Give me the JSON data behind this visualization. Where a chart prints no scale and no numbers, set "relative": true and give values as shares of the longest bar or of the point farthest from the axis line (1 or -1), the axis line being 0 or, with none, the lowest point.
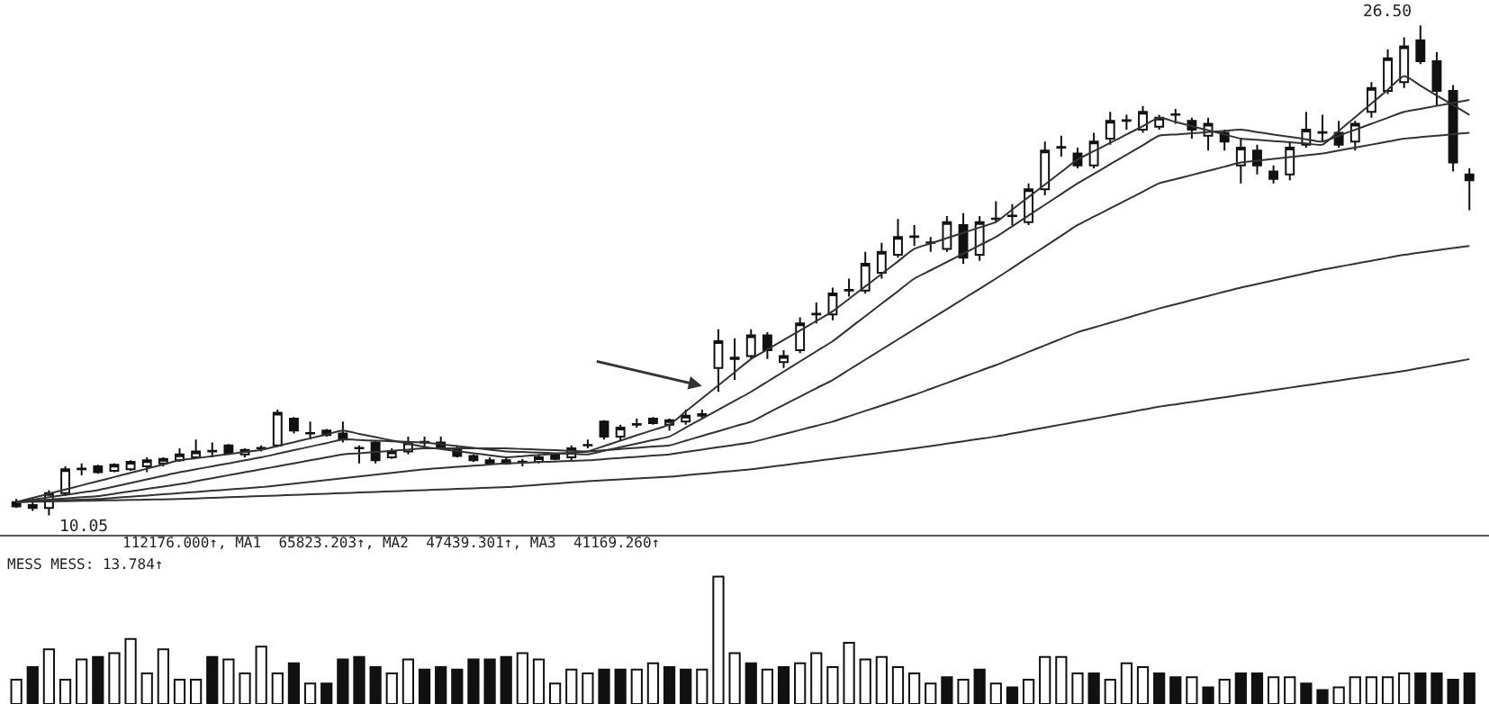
{
  "chart_data": [
    {
      "type": "candlestick",
      "marker": "none",
      "line_style": "solid",
      "categories": [
        null,
        null,
        null,
        null,
        null,
        null,
        null,
        null,
        null,
        null,
        null,
        null,
        null,
        null,
        null,
        null,
        null,
        null,
        null,
        null,
        null,
        null,
        null,
        null,
        null,
        null,
        null,
        null,
        null,
        null,
        null,
        null,
        null,
        null,
        null,
        null,
        null,
        null,
        null,
        null,
        null,
        null,
        null,
        null,
        null,
        null,
        null,
        null,
        null,
        null,
        null,
        null,
        null,
        null,
        null,
        null,
        null,
        null,
        null,
        null,
        null,
        null,
        null,
        null,
        null,
        null,
        null,
        null,
        null,
        null,
        null,
        null,
        null,
        null,
        null,
        null,
        null,
        null,
        null,
        null,
        null,
        null,
        null,
        null,
        null,
        null,
        null,
        null,
        null,
        null
      ],
      "ohlc": [
        [
          10.5,
          10.6,
          10.3,
          10.35
        ],
        [
          10.4,
          10.5,
          10.2,
          10.3
        ],
        [
          10.3,
          10.9,
          10.05,
          10.8
        ],
        [
          10.8,
          11.7,
          10.7,
          11.6
        ],
        [
          11.6,
          11.8,
          11.4,
          11.62
        ],
        [
          11.7,
          11.75,
          11.45,
          11.5
        ],
        [
          11.55,
          11.8,
          11.5,
          11.75
        ],
        [
          11.6,
          11.9,
          11.55,
          11.85
        ],
        [
          11.7,
          12.0,
          11.5,
          11.9
        ],
        [
          11.8,
          12.0,
          11.7,
          11.95
        ],
        [
          11.9,
          12.3,
          11.85,
          12.1
        ],
        [
          12.0,
          12.6,
          11.95,
          12.2
        ],
        [
          12.2,
          12.5,
          12.0,
          12.22
        ],
        [
          12.4,
          12.45,
          12.1,
          12.15
        ],
        [
          12.1,
          12.3,
          12.0,
          12.25
        ],
        [
          12.3,
          12.4,
          12.2,
          12.32
        ],
        [
          12.4,
          13.6,
          12.35,
          13.5
        ],
        [
          13.3,
          13.35,
          12.8,
          12.9
        ],
        [
          12.8,
          13.2,
          12.6,
          12.82
        ],
        [
          12.9,
          12.95,
          12.7,
          12.75
        ],
        [
          12.8,
          13.2,
          12.5,
          12.6
        ],
        [
          12.3,
          12.4,
          11.8,
          12.32
        ],
        [
          12.5,
          12.55,
          11.8,
          11.9
        ],
        [
          12.0,
          12.3,
          11.95,
          12.2
        ],
        [
          12.2,
          12.7,
          12.1,
          12.5
        ],
        [
          12.5,
          12.7,
          12.3,
          12.52
        ],
        [
          12.5,
          12.7,
          12.3,
          12.35
        ],
        [
          12.3,
          12.4,
          12.0,
          12.05
        ],
        [
          12.05,
          12.1,
          11.85,
          11.9
        ],
        [
          11.9,
          12.0,
          11.75,
          11.8
        ],
        [
          11.8,
          12.0,
          11.75,
          11.9
        ],
        [
          11.85,
          11.95,
          11.7,
          11.86
        ],
        [
          11.85,
          12.1,
          11.8,
          12.0
        ],
        [
          12.1,
          12.15,
          11.9,
          11.95
        ],
        [
          12.0,
          12.4,
          11.9,
          12.3
        ],
        [
          12.4,
          12.6,
          12.3,
          12.42
        ],
        [
          13.2,
          13.25,
          12.6,
          12.7
        ],
        [
          12.7,
          13.1,
          12.55,
          13.0
        ],
        [
          13.1,
          13.3,
          13.0,
          13.12
        ],
        [
          13.3,
          13.35,
          13.1,
          13.15
        ],
        [
          13.1,
          13.3,
          12.9,
          13.25
        ],
        [
          13.2,
          13.6,
          13.1,
          13.4
        ],
        [
          13.4,
          13.6,
          13.3,
          13.45
        ],
        [
          15.0,
          16.3,
          14.2,
          15.9
        ],
        [
          15.3,
          16.0,
          14.6,
          15.35
        ],
        [
          15.4,
          16.3,
          15.3,
          16.1
        ],
        [
          16.1,
          16.2,
          15.3,
          15.6
        ],
        [
          15.2,
          15.6,
          15.0,
          15.4
        ],
        [
          15.6,
          16.7,
          15.5,
          16.5
        ],
        [
          16.8,
          17.2,
          16.5,
          16.82
        ],
        [
          16.8,
          17.7,
          16.6,
          17.5
        ],
        [
          17.6,
          18.0,
          17.4,
          17.62
        ],
        [
          17.6,
          18.9,
          17.5,
          18.5
        ],
        [
          18.2,
          19.2,
          18.0,
          18.9
        ],
        [
          18.8,
          20.0,
          18.7,
          19.4
        ],
        [
          19.4,
          19.8,
          19.1,
          19.42
        ],
        [
          19.2,
          19.4,
          18.9,
          19.22
        ],
        [
          19.0,
          20.1,
          18.9,
          19.9
        ],
        [
          19.8,
          20.2,
          18.5,
          18.7
        ],
        [
          18.8,
          20.1,
          18.6,
          19.9
        ],
        [
          20.0,
          20.6,
          19.9,
          20.02
        ],
        [
          20.1,
          20.5,
          19.8,
          20.12
        ],
        [
          19.9,
          21.2,
          19.8,
          21.0
        ],
        [
          21.0,
          22.6,
          20.8,
          22.3
        ],
        [
          22.4,
          22.8,
          22.1,
          22.42
        ],
        [
          22.2,
          22.4,
          21.7,
          21.8
        ],
        [
          21.8,
          22.9,
          21.7,
          22.6
        ],
        [
          22.7,
          23.6,
          22.5,
          23.3
        ],
        [
          23.3,
          23.5,
          23.0,
          23.32
        ],
        [
          23.0,
          23.8,
          22.9,
          23.6
        ],
        [
          23.1,
          23.5,
          23.0,
          23.4
        ],
        [
          23.5,
          23.7,
          23.2,
          23.52
        ],
        [
          23.3,
          23.4,
          22.7,
          23.0
        ],
        [
          22.8,
          23.4,
          22.3,
          23.2
        ],
        [
          22.9,
          23.0,
          22.3,
          22.6
        ],
        [
          21.8,
          22.7,
          21.2,
          22.4
        ],
        [
          22.3,
          22.5,
          21.5,
          21.8
        ],
        [
          21.6,
          21.8,
          21.2,
          21.35
        ],
        [
          21.5,
          22.6,
          21.3,
          22.4
        ],
        [
          22.5,
          23.6,
          22.4,
          23.0
        ],
        [
          22.9,
          23.5,
          22.6,
          22.92
        ],
        [
          22.9,
          23.3,
          22.4,
          22.5
        ],
        [
          22.6,
          23.3,
          22.3,
          23.2
        ],
        [
          23.6,
          24.6,
          23.4,
          24.4
        ],
        [
          24.3,
          25.7,
          24.2,
          25.4
        ],
        [
          24.6,
          26.1,
          24.4,
          25.8
        ],
        [
          26.0,
          26.5,
          25.2,
          25.3
        ],
        [
          25.3,
          25.6,
          23.8,
          24.3
        ],
        [
          24.3,
          24.5,
          21.6,
          21.9
        ],
        [
          21.5,
          21.7,
          20.3,
          21.3
        ]
      ],
      "series": [
        {
          "type": "line",
          "color": "#333333",
          "values": [
            10.5,
            10.64,
            10.78,
            10.92,
            11.06,
            11.2,
            11.34,
            11.48,
            11.62,
            11.76,
            11.9,
            11.97,
            12.04,
            12.11,
            12.18,
            12.25,
            12.38,
            12.51,
            12.64,
            12.77,
            12.9,
            12.79,
            12.68,
            12.57,
            12.46,
            12.35,
            12.28,
            12.21,
            12.14,
            12.07,
            12.0,
            12.04,
            12.08,
            12.12,
            12.16,
            12.2,
            12.38,
            12.56,
            12.74,
            12.92,
            13.1,
            13.54,
            13.98,
            14.42,
            14.86,
            15.3,
            15.62,
            15.94,
            16.26,
            16.58,
            16.9,
            17.32,
            17.74,
            18.16,
            18.58,
            19.0,
            19.18,
            19.36,
            19.54,
            19.72,
            19.9,
            20.32,
            20.74,
            21.16,
            21.58,
            22.0,
            22.28,
            22.56,
            22.84,
            23.12,
            23.4,
            23.26,
            23.12,
            22.98,
            22.84,
            22.7,
            22.66,
            22.62,
            22.58,
            22.54,
            22.5,
            22.96,
            23.42,
            23.88,
            24.34,
            24.8,
            24.48,
            24.15,
            23.83,
            23.5
          ]
        },
        {
          "type": "line",
          "color": "#333333",
          "values": [
            10.5,
            10.58,
            10.66,
            10.74,
            10.82,
            10.9,
            11.02,
            11.14,
            11.26,
            11.38,
            11.5,
            11.6,
            11.7,
            11.8,
            11.9,
            12.0,
            12.12,
            12.24,
            12.36,
            12.48,
            12.6,
            12.58,
            12.56,
            12.54,
            12.52,
            12.5,
            12.44,
            12.38,
            12.32,
            12.26,
            12.2,
            12.18,
            12.16,
            12.14,
            12.12,
            12.1,
            12.22,
            12.34,
            12.46,
            12.58,
            12.7,
            13.0,
            13.3,
            13.6,
            13.9,
            14.2,
            14.54,
            14.88,
            15.22,
            15.56,
            15.9,
            16.32,
            16.74,
            17.16,
            17.58,
            18.0,
            18.28,
            18.56,
            18.84,
            19.12,
            19.4,
            19.76,
            20.12,
            20.48,
            20.84,
            21.2,
            21.52,
            21.84,
            22.16,
            22.48,
            22.8,
            22.84,
            22.88,
            22.92,
            22.96,
            23.0,
            22.92,
            22.84,
            22.76,
            22.68,
            22.6,
            22.8,
            23.0,
            23.2,
            23.4,
            23.6,
            23.7,
            23.8,
            23.9,
            24.0
          ]
        },
        {
          "type": "line",
          "color": "#333333",
          "values": [
            10.5,
            10.54,
            10.58,
            10.62,
            10.66,
            10.7,
            10.78,
            10.86,
            10.94,
            11.02,
            11.1,
            11.2,
            11.3,
            11.4,
            11.5,
            11.6,
            11.7,
            11.8,
            11.9,
            12.0,
            12.1,
            12.14,
            12.18,
            12.22,
            12.26,
            12.3,
            12.3,
            12.3,
            12.3,
            12.3,
            12.3,
            12.28,
            12.26,
            12.24,
            12.22,
            12.2,
            12.24,
            12.28,
            12.32,
            12.36,
            12.4,
            12.56,
            12.72,
            12.88,
            13.04,
            13.2,
            13.48,
            13.76,
            14.04,
            14.32,
            14.6,
            14.94,
            15.28,
            15.62,
            15.96,
            16.3,
            16.64,
            16.98,
            17.32,
            17.66,
            18.0,
            18.36,
            18.72,
            19.08,
            19.44,
            19.8,
            20.08,
            20.36,
            20.64,
            20.92,
            21.2,
            21.34,
            21.48,
            21.62,
            21.76,
            21.9,
            21.96,
            22.02,
            22.08,
            22.14,
            22.2,
            22.3,
            22.4,
            22.5,
            22.6,
            22.7,
            22.75,
            22.8,
            22.85,
            22.9
          ]
        },
        {
          "type": "line",
          "color": "#333333",
          "values": [
            10.5,
            10.52,
            10.54,
            10.56,
            10.58,
            10.6,
            10.64,
            10.68,
            10.72,
            10.76,
            10.8,
            10.84,
            10.88,
            10.92,
            10.96,
            11.0,
            11.06,
            11.12,
            11.18,
            11.24,
            11.3,
            11.36,
            11.42,
            11.48,
            11.54,
            11.6,
            11.64,
            11.68,
            11.72,
            11.76,
            11.8,
            11.82,
            11.84,
            11.86,
            11.88,
            11.9,
            11.94,
            11.98,
            12.02,
            12.06,
            12.1,
            12.18,
            12.26,
            12.34,
            12.42,
            12.5,
            12.64,
            12.78,
            12.92,
            13.06,
            13.2,
            13.38,
            13.56,
            13.74,
            13.92,
            14.1,
            14.3,
            14.5,
            14.7,
            14.9,
            15.1,
            15.32,
            15.54,
            15.76,
            15.98,
            16.2,
            16.36,
            16.52,
            16.68,
            16.84,
            17.0,
            17.14,
            17.28,
            17.42,
            17.56,
            17.7,
            17.82,
            17.94,
            18.06,
            18.18,
            18.3,
            18.4,
            18.5,
            18.6,
            18.7,
            18.8,
            18.88,
            18.95,
            19.03,
            19.1
          ]
        },
        {
          "type": "line",
          "color": "#333333",
          "values": [
            10.5,
            10.51,
            10.52,
            10.53,
            10.54,
            10.55,
            10.56,
            10.57,
            10.58,
            10.59,
            10.6,
            10.62,
            10.64,
            10.66,
            10.68,
            10.7,
            10.72,
            10.74,
            10.76,
            10.78,
            10.8,
            10.82,
            10.84,
            10.86,
            10.88,
            10.9,
            10.92,
            10.94,
            10.96,
            10.98,
            11.0,
            11.04,
            11.08,
            11.12,
            11.16,
            11.2,
            11.23,
            11.26,
            11.29,
            11.32,
            11.35,
            11.4,
            11.45,
            11.5,
            11.55,
            11.6,
            11.67,
            11.74,
            11.81,
            11.88,
            11.95,
            12.02,
            12.09,
            12.16,
            12.23,
            12.3,
            12.38,
            12.46,
            12.54,
            12.62,
            12.7,
            12.8,
            12.9,
            13.0,
            13.1,
            13.2,
            13.3,
            13.4,
            13.5,
            13.6,
            13.7,
            13.78,
            13.86,
            13.94,
            14.02,
            14.1,
            14.18,
            14.26,
            14.34,
            14.42,
            14.5,
            14.58,
            14.66,
            14.74,
            14.82,
            14.9,
            15.0,
            15.1,
            15.2,
            15.3
          ]
        }
      ],
      "annotations": [
        "26.50",
        "10.05"
      ]
    },
    {
      "type": "bar",
      "relative": true,
      "categories": [
        null,
        null,
        null,
        null,
        null,
        null,
        null,
        null,
        null,
        null,
        null,
        null,
        null,
        null,
        null,
        null,
        null,
        null,
        null,
        null,
        null,
        null,
        null,
        null,
        null,
        null,
        null,
        null,
        null,
        null,
        null,
        null,
        null,
        null,
        null,
        null,
        null,
        null,
        null,
        null,
        null,
        null,
        null,
        null,
        null,
        null,
        null,
        null,
        null,
        null,
        null,
        null,
        null,
        null,
        null,
        null,
        null,
        null,
        null,
        null,
        null,
        null,
        null,
        null,
        null,
        null,
        null,
        null,
        null,
        null,
        null,
        null,
        null,
        null,
        null,
        null,
        null,
        null,
        null,
        null,
        null,
        null,
        null,
        null,
        null,
        null,
        null,
        null,
        null,
        null
      ],
      "values": [
        0.19,
        0.29,
        0.43,
        0.19,
        0.35,
        0.37,
        0.4,
        0.51,
        0.24,
        0.43,
        0.19,
        0.19,
        0.37,
        0.35,
        0.24,
        0.45,
        0.24,
        0.32,
        0.16,
        0.16,
        0.35,
        0.37,
        0.29,
        0.24,
        0.35,
        0.27,
        0.29,
        0.27,
        0.35,
        0.35,
        0.37,
        0.4,
        0.35,
        0.16,
        0.27,
        0.24,
        0.27,
        0.27,
        0.27,
        0.32,
        0.29,
        0.27,
        0.27,
        1,
        0.4,
        0.32,
        0.27,
        0.29,
        0.32,
        0.4,
        0.29,
        0.48,
        0.35,
        0.37,
        0.29,
        0.24,
        0.16,
        0.21,
        0.19,
        0.27,
        0.16,
        0.13,
        0.19,
        0.37,
        0.37,
        0.24,
        0.24,
        0.19,
        0.32,
        0.29,
        0.24,
        0.21,
        0.21,
        0.13,
        0.19,
        0.24,
        0.24,
        0.21,
        0.21,
        0.16,
        0.11,
        0.13,
        0.21,
        0.21,
        0.21,
        0.24,
        0.24,
        0.24,
        0.19,
        0.24
      ],
      "colors": [
        "#ffffff",
        "#111111",
        "#ffffff",
        "#ffffff",
        "#ffffff",
        "#111111",
        "#ffffff",
        "#ffffff",
        "#ffffff",
        "#ffffff",
        "#ffffff",
        "#ffffff",
        "#111111",
        "#ffffff",
        "#ffffff",
        "#ffffff",
        "#ffffff",
        "#111111",
        "#ffffff",
        "#111111",
        "#111111",
        "#111111",
        "#111111",
        "#ffffff",
        "#ffffff",
        "#111111",
        "#111111",
        "#111111",
        "#111111",
        "#111111",
        "#111111",
        "#ffffff",
        "#ffffff",
        "#ffffff",
        "#ffffff",
        "#ffffff",
        "#111111",
        "#111111",
        "#ffffff",
        "#ffffff",
        "#111111",
        "#111111",
        "#ffffff",
        "#ffffff",
        "#ffffff",
        "#111111",
        "#ffffff",
        "#111111",
        "#ffffff",
        "#ffffff",
        "#ffffff",
        "#ffffff",
        "#ffffff",
        "#ffffff",
        "#ffffff",
        "#ffffff",
        "#ffffff",
        "#111111",
        "#ffffff",
        "#111111",
        "#ffffff",
        "#111111",
        "#ffffff",
        "#ffffff",
        "#ffffff",
        "#ffffff",
        "#111111",
        "#ffffff",
        "#ffffff",
        "#ffffff",
        "#111111",
        "#111111",
        "#ffffff",
        "#111111",
        "#ffffff",
        "#111111",
        "#111111",
        "#ffffff",
        "#ffffff",
        "#111111",
        "#111111",
        "#ffffff",
        "#ffffff",
        "#ffffff",
        "#ffffff",
        "#ffffff",
        "#111111",
        "#111111",
        "#111111",
        "#111111"
      ],
      "annotations": [
        "112176.000↑, MA1  65823.203↑, MA2  47439.301↑, MA3  41169.260↑",
        "MESS MESS: 13.784↑"
      ]
    }
  ]
}
